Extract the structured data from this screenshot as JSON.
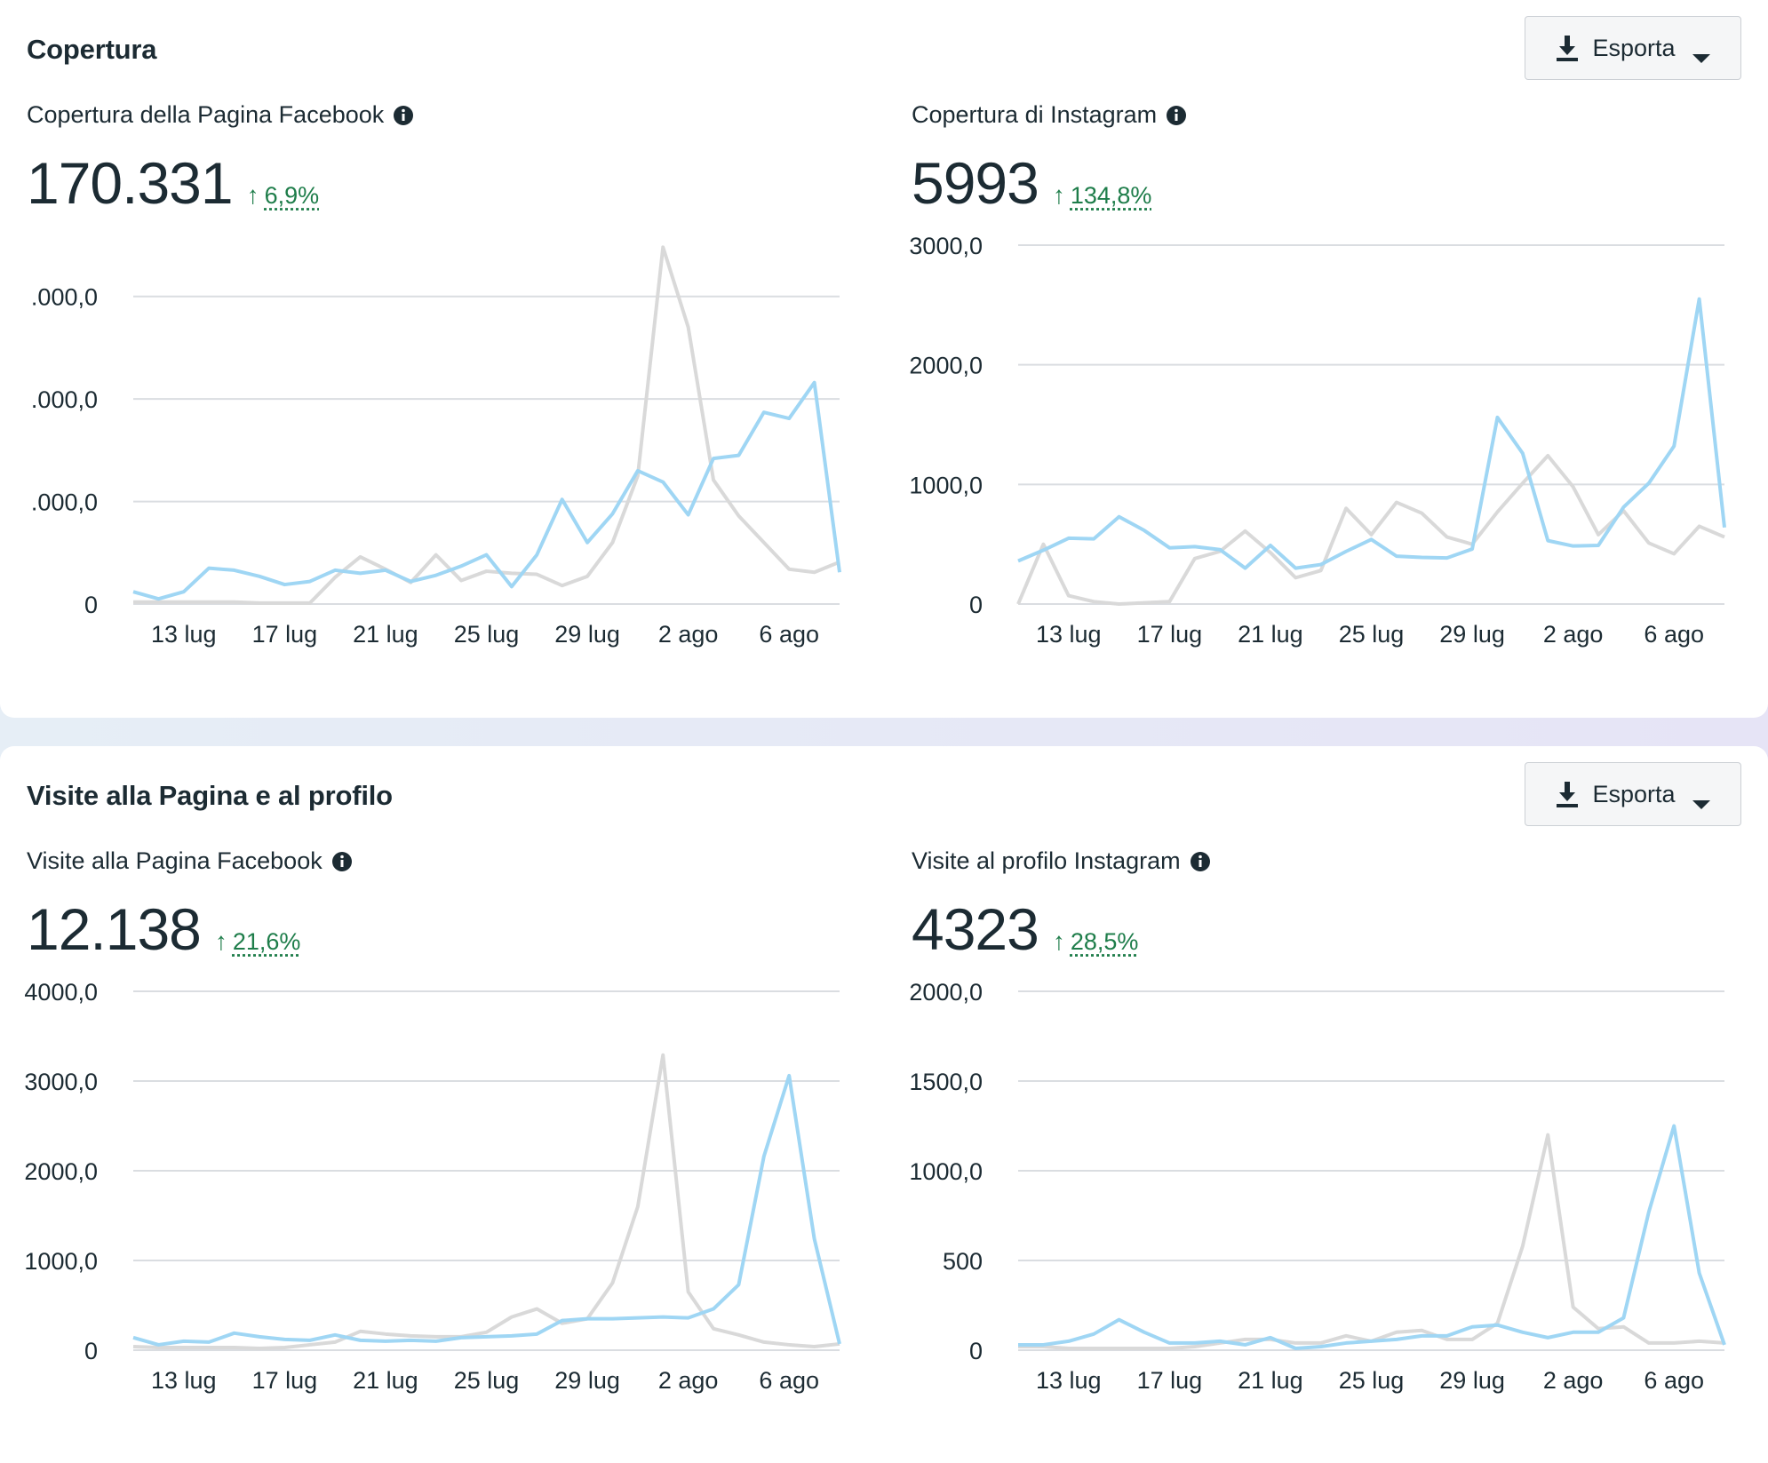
{
  "colors": {
    "current": "#9fd6f4",
    "previous": "#d9d9d9",
    "grid": "#dadde1",
    "positive": "#1e7d4a"
  },
  "sections": [
    {
      "title": "Copertura",
      "export_label": "Esporta",
      "panels": [
        {
          "title": "Copertura della Pagina Facebook",
          "value": "170.331",
          "change": "6,9%"
        },
        {
          "title": "Copertura di Instagram",
          "value": "5993",
          "change": "134,8%"
        }
      ]
    },
    {
      "title": "Visite alla Pagina e al profilo",
      "export_label": "Esporta",
      "panels": [
        {
          "title": "Visite alla Pagina Facebook",
          "value": "12.138",
          "change": "21,6%"
        },
        {
          "title": "Visite al profilo Instagram",
          "value": "4323",
          "change": "28,5%"
        }
      ]
    }
  ],
  "chart_data": [
    {
      "type": "line",
      "title": "Copertura della Pagina Facebook",
      "x_ticks": [
        "13 lug",
        "17 lug",
        "21 lug",
        "25 lug",
        "29 lug",
        "2 ago",
        "6 ago"
      ],
      "y_ticks": [
        ".000,0",
        ".000,0",
        ".000,0",
        "0"
      ],
      "y_tick_values": [
        3,
        2,
        1,
        0
      ],
      "ylim": [
        0,
        3.5
      ],
      "series": [
        {
          "values": [
            0.12,
            0.05,
            0.12,
            0.35,
            0.33,
            0.27,
            0.19,
            0.22,
            0.33,
            0.3,
            0.33,
            0.22,
            0.28,
            0.37,
            0.48,
            0.17,
            0.48,
            1.02,
            0.6,
            0.88,
            1.3,
            1.19,
            0.87,
            1.42,
            1.45,
            1.87,
            1.81,
            2.16,
            0.31
          ]
        },
        {
          "values": [
            0.02,
            0.02,
            0.02,
            0.02,
            0.02,
            0.01,
            0.01,
            0.01,
            0.26,
            0.46,
            0.34,
            0.21,
            0.48,
            0.23,
            0.32,
            0.3,
            0.29,
            0.18,
            0.27,
            0.6,
            1.25,
            3.48,
            2.7,
            1.21,
            0.86,
            0.6,
            0.34,
            0.31,
            0.41
          ]
        }
      ]
    },
    {
      "type": "line",
      "title": "Copertura di Instagram",
      "x_ticks": [
        "13 lug",
        "17 lug",
        "21 lug",
        "25 lug",
        "29 lug",
        "2 ago",
        "6 ago"
      ],
      "y_ticks": [
        "3000,0",
        "2000,0",
        "1000,0",
        "0"
      ],
      "y_tick_values": [
        3000,
        2000,
        1000,
        0
      ],
      "ylim": [
        0,
        3000
      ],
      "series": [
        {
          "values": [
            360,
            450,
            550,
            545,
            730,
            615,
            470,
            480,
            455,
            300,
            490,
            300,
            330,
            440,
            540,
            400,
            390,
            385,
            460,
            1560,
            1260,
            530,
            485,
            490,
            810,
            1010,
            1320,
            2550,
            640
          ]
        },
        {
          "values": [
            0,
            500,
            70,
            20,
            0,
            10,
            20,
            380,
            440,
            610,
            430,
            220,
            280,
            800,
            580,
            850,
            760,
            560,
            500,
            770,
            1010,
            1240,
            980,
            580,
            780,
            510,
            420,
            650,
            560
          ]
        }
      ]
    },
    {
      "type": "line",
      "title": "Visite alla Pagina Facebook",
      "x_ticks": [
        "13 lug",
        "17 lug",
        "21 lug",
        "25 lug",
        "29 lug",
        "2 ago",
        "6 ago"
      ],
      "y_ticks": [
        "4000,0",
        "3000,0",
        "2000,0",
        "1000,0",
        "0"
      ],
      "y_tick_values": [
        4000,
        3000,
        2000,
        1000,
        0
      ],
      "ylim": [
        0,
        4000
      ],
      "series": [
        {
          "values": [
            140,
            60,
            100,
            90,
            190,
            150,
            120,
            110,
            170,
            110,
            100,
            110,
            100,
            140,
            150,
            160,
            180,
            330,
            350,
            350,
            360,
            370,
            360,
            460,
            730,
            2160,
            3060,
            1240,
            70
          ]
        },
        {
          "values": [
            40,
            30,
            30,
            30,
            30,
            20,
            30,
            60,
            90,
            210,
            180,
            160,
            150,
            150,
            200,
            370,
            460,
            300,
            350,
            750,
            1600,
            3290,
            650,
            240,
            170,
            90,
            60,
            40,
            70
          ]
        }
      ]
    },
    {
      "type": "line",
      "title": "Visite al profilo Instagram",
      "x_ticks": [
        "13 lug",
        "17 lug",
        "21 lug",
        "25 lug",
        "29 lug",
        "2 ago",
        "6 ago"
      ],
      "y_ticks": [
        "2000,0",
        "1500,0",
        "1000,0",
        "500",
        "0"
      ],
      "y_tick_values": [
        2000,
        1500,
        1000,
        500,
        0
      ],
      "ylim": [
        0,
        2000
      ],
      "series": [
        {
          "values": [
            30,
            30,
            50,
            90,
            170,
            100,
            40,
            40,
            50,
            30,
            70,
            10,
            20,
            40,
            50,
            60,
            80,
            80,
            130,
            140,
            100,
            70,
            100,
            100,
            180,
            770,
            1250,
            430,
            30
          ]
        },
        {
          "values": [
            20,
            20,
            10,
            10,
            10,
            10,
            10,
            20,
            40,
            60,
            60,
            40,
            40,
            80,
            50,
            100,
            110,
            60,
            60,
            150,
            580,
            1200,
            240,
            120,
            130,
            40,
            40,
            50,
            40
          ]
        }
      ]
    }
  ]
}
